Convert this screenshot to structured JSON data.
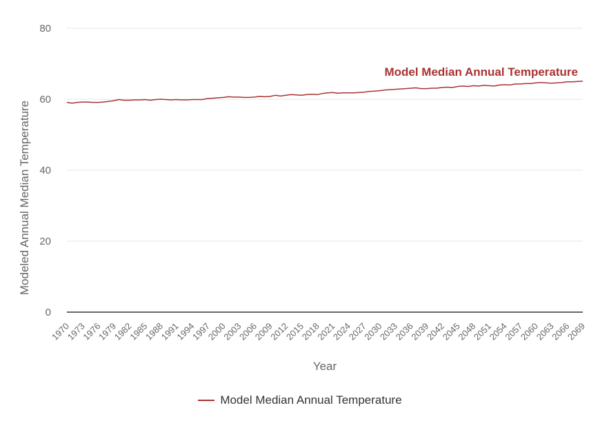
{
  "colors": {
    "series": "#a83232",
    "grid": "#e6e6e6",
    "axis": "#333333"
  },
  "chart_data": {
    "type": "line",
    "title": "",
    "xlabel": "Year",
    "ylabel": "Modeled Annual Median Temperature",
    "ylim": [
      0,
      80
    ],
    "yticks": [
      "0",
      "20",
      "40",
      "60",
      "80"
    ],
    "xlim": [
      1970,
      2069
    ],
    "xticks": [
      "1970",
      "1973",
      "1976",
      "1979",
      "1982",
      "1985",
      "1988",
      "1991",
      "1994",
      "1997",
      "2000",
      "2003",
      "2006",
      "2009",
      "2012",
      "2015",
      "2018",
      "2021",
      "2024",
      "2027",
      "2030",
      "2033",
      "2036",
      "2039",
      "2042",
      "2045",
      "2048",
      "2051",
      "2054",
      "2057",
      "2060",
      "2063",
      "2066",
      "2069"
    ],
    "grid": true,
    "legend_position": "bottom-center",
    "series": [
      {
        "name": "Model Median Annual Temperature",
        "label": "Model Median Annual Temperature",
        "x": [
          1970,
          1971,
          1972,
          1973,
          1974,
          1975,
          1976,
          1977,
          1978,
          1979,
          1980,
          1981,
          1982,
          1983,
          1984,
          1985,
          1986,
          1987,
          1988,
          1989,
          1990,
          1991,
          1992,
          1993,
          1994,
          1995,
          1996,
          1997,
          1998,
          1999,
          2000,
          2001,
          2002,
          2003,
          2004,
          2005,
          2006,
          2007,
          2008,
          2009,
          2010,
          2011,
          2012,
          2013,
          2014,
          2015,
          2016,
          2017,
          2018,
          2019,
          2020,
          2021,
          2022,
          2023,
          2024,
          2025,
          2026,
          2027,
          2028,
          2029,
          2030,
          2031,
          2032,
          2033,
          2034,
          2035,
          2036,
          2037,
          2038,
          2039,
          2040,
          2041,
          2042,
          2043,
          2044,
          2045,
          2046,
          2047,
          2048,
          2049,
          2050,
          2051,
          2052,
          2053,
          2054,
          2055,
          2056,
          2057,
          2058,
          2059,
          2060,
          2061,
          2062,
          2063,
          2064,
          2065,
          2066,
          2067,
          2068,
          2069
        ],
        "values": [
          59.1,
          58.9,
          59.1,
          59.2,
          59.2,
          59.1,
          59.1,
          59.2,
          59.4,
          59.6,
          59.9,
          59.7,
          59.7,
          59.8,
          59.8,
          59.9,
          59.7,
          59.9,
          60.0,
          59.9,
          59.8,
          59.9,
          59.8,
          59.8,
          59.9,
          59.9,
          59.9,
          60.2,
          60.3,
          60.4,
          60.5,
          60.7,
          60.6,
          60.6,
          60.5,
          60.5,
          60.6,
          60.8,
          60.7,
          60.8,
          61.1,
          60.9,
          61.1,
          61.3,
          61.2,
          61.1,
          61.3,
          61.4,
          61.3,
          61.6,
          61.8,
          61.9,
          61.7,
          61.8,
          61.8,
          61.8,
          61.9,
          62.0,
          62.2,
          62.3,
          62.4,
          62.6,
          62.7,
          62.8,
          62.9,
          63.0,
          63.1,
          63.2,
          63.0,
          63.0,
          63.1,
          63.1,
          63.3,
          63.4,
          63.3,
          63.6,
          63.7,
          63.6,
          63.8,
          63.7,
          63.9,
          63.8,
          63.7,
          64.0,
          64.1,
          64.0,
          64.3,
          64.3,
          64.4,
          64.4,
          64.6,
          64.7,
          64.6,
          64.5,
          64.6,
          64.7,
          64.9,
          64.9,
          65.0,
          65.1
        ]
      }
    ]
  }
}
